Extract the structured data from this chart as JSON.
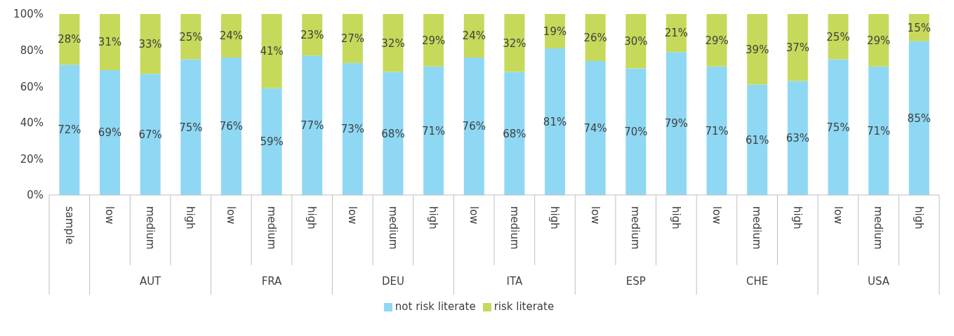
{
  "chart_data": {
    "type": "bar",
    "stacked": true,
    "categories": [
      "sample",
      "low",
      "medium",
      "high",
      "low",
      "medium",
      "high",
      "low",
      "medium",
      "high",
      "low",
      "medium",
      "high",
      "low",
      "medium",
      "high",
      "low",
      "medium",
      "high",
      "low",
      "medium",
      "high"
    ],
    "annotations": [
      "AUT",
      "FRA",
      "DEU",
      "ITA",
      "ESP",
      "CHE",
      "USA"
    ],
    "series": [
      {
        "name": "not risk literate",
        "color": "#8ed8f4",
        "values": [
          72,
          69,
          67,
          75,
          76,
          59,
          77,
          73,
          68,
          71,
          76,
          68,
          81,
          74,
          70,
          79,
          71,
          61,
          63,
          75,
          71,
          85
        ],
        "value_labels": [
          "72%",
          "69%",
          "67%",
          "75%",
          "76%",
          "59%",
          "77%",
          "73%",
          "68%",
          "71%",
          "76%",
          "68%",
          "81%",
          "74%",
          "70%",
          "79%",
          "71%",
          "61%",
          "63%",
          "75%",
          "71%",
          "85%"
        ]
      },
      {
        "name": "risk literate",
        "color": "#c6d95b",
        "values": [
          28,
          31,
          33,
          25,
          24,
          41,
          23,
          27,
          32,
          29,
          24,
          32,
          19,
          26,
          30,
          21,
          29,
          39,
          37,
          25,
          29,
          15
        ],
        "value_labels": [
          "28%",
          "31%",
          "33%",
          "25%",
          "24%",
          "41%",
          "23%",
          "27%",
          "32%",
          "29%",
          "24%",
          "32%",
          "19%",
          "26%",
          "30%",
          "21%",
          "29%",
          "39%",
          "37%",
          "25%",
          "29%",
          "15%"
        ]
      }
    ],
    "ylim": [
      0,
      100
    ],
    "yticks": [
      {
        "value": 0,
        "label": "0%"
      },
      {
        "value": 20,
        "label": "20%"
      },
      {
        "value": 40,
        "label": "40%"
      },
      {
        "value": 60,
        "label": "60%"
      },
      {
        "value": 80,
        "label": "80%"
      },
      {
        "value": 100,
        "label": "100%"
      }
    ],
    "legend": "bottom"
  }
}
